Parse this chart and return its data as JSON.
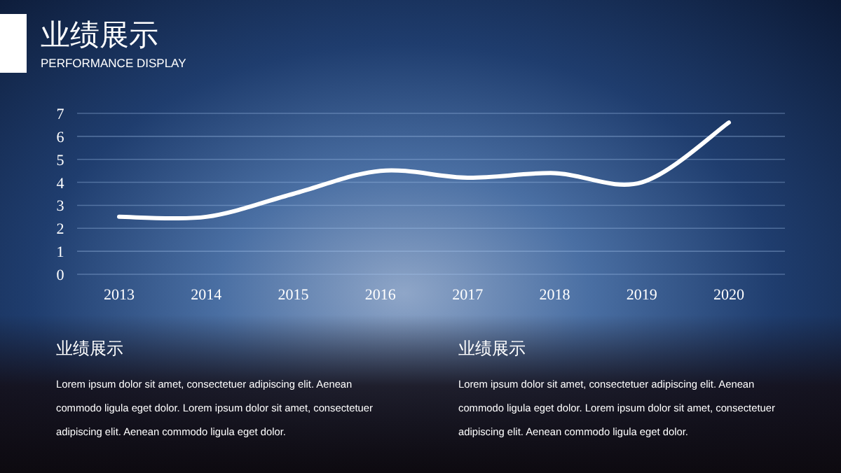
{
  "chart_data": {
    "type": "line",
    "title": "业绩展示",
    "subtitle": "PERFORMANCE DISPLAY",
    "categories": [
      "2013",
      "2014",
      "2015",
      "2016",
      "2017",
      "2018",
      "2019",
      "2020"
    ],
    "series": [
      {
        "color": "#ffffff",
        "values": [
          2.5,
          2.5,
          3.5,
          4.5,
          4.2,
          4.4,
          4.0,
          6.6
        ]
      }
    ],
    "ylim": [
      0,
      7
    ],
    "yticks": [
      0,
      1,
      2,
      3,
      4,
      5,
      6,
      7
    ],
    "grid": "y",
    "annotations": [
      "业绩展示",
      "Lorem ipsum dolor sit amet, consectetuer adipiscing elit. Aenean commodo ligula eget dolor. Lorem ipsum dolor sit amet, consectetuer adipiscing elit. Aenean commodo ligula eget dolor.",
      "业绩展示",
      "Lorem ipsum dolor sit amet, consectetuer adipiscing elit. Aenean commodo ligula eget dolor. Lorem ipsum dolor sit amet, consectetuer adipiscing elit. Aenean commodo ligula eget dolor."
    ]
  }
}
